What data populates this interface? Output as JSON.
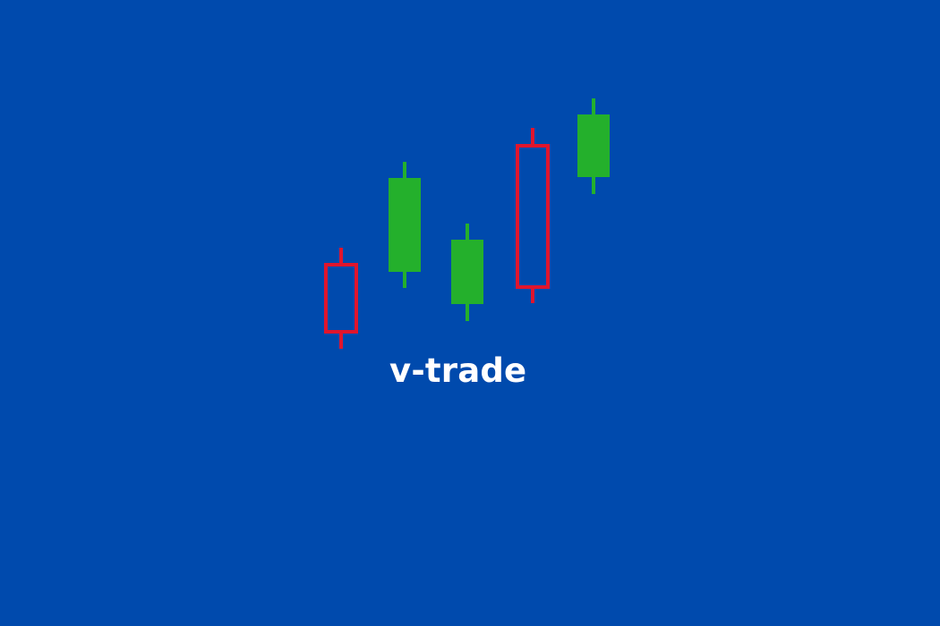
{
  "brand": {
    "name": "v-trade"
  },
  "colors": {
    "background": "#004aad",
    "bearish": "#e0152d",
    "bullish": "#24b02c",
    "text": "#ffffff"
  },
  "logo": {
    "candles": [
      {
        "type": "bearish",
        "style": "hollow"
      },
      {
        "type": "bullish",
        "style": "filled"
      },
      {
        "type": "bullish",
        "style": "filled"
      },
      {
        "type": "bearish",
        "style": "hollow"
      },
      {
        "type": "bullish",
        "style": "filled"
      }
    ]
  }
}
